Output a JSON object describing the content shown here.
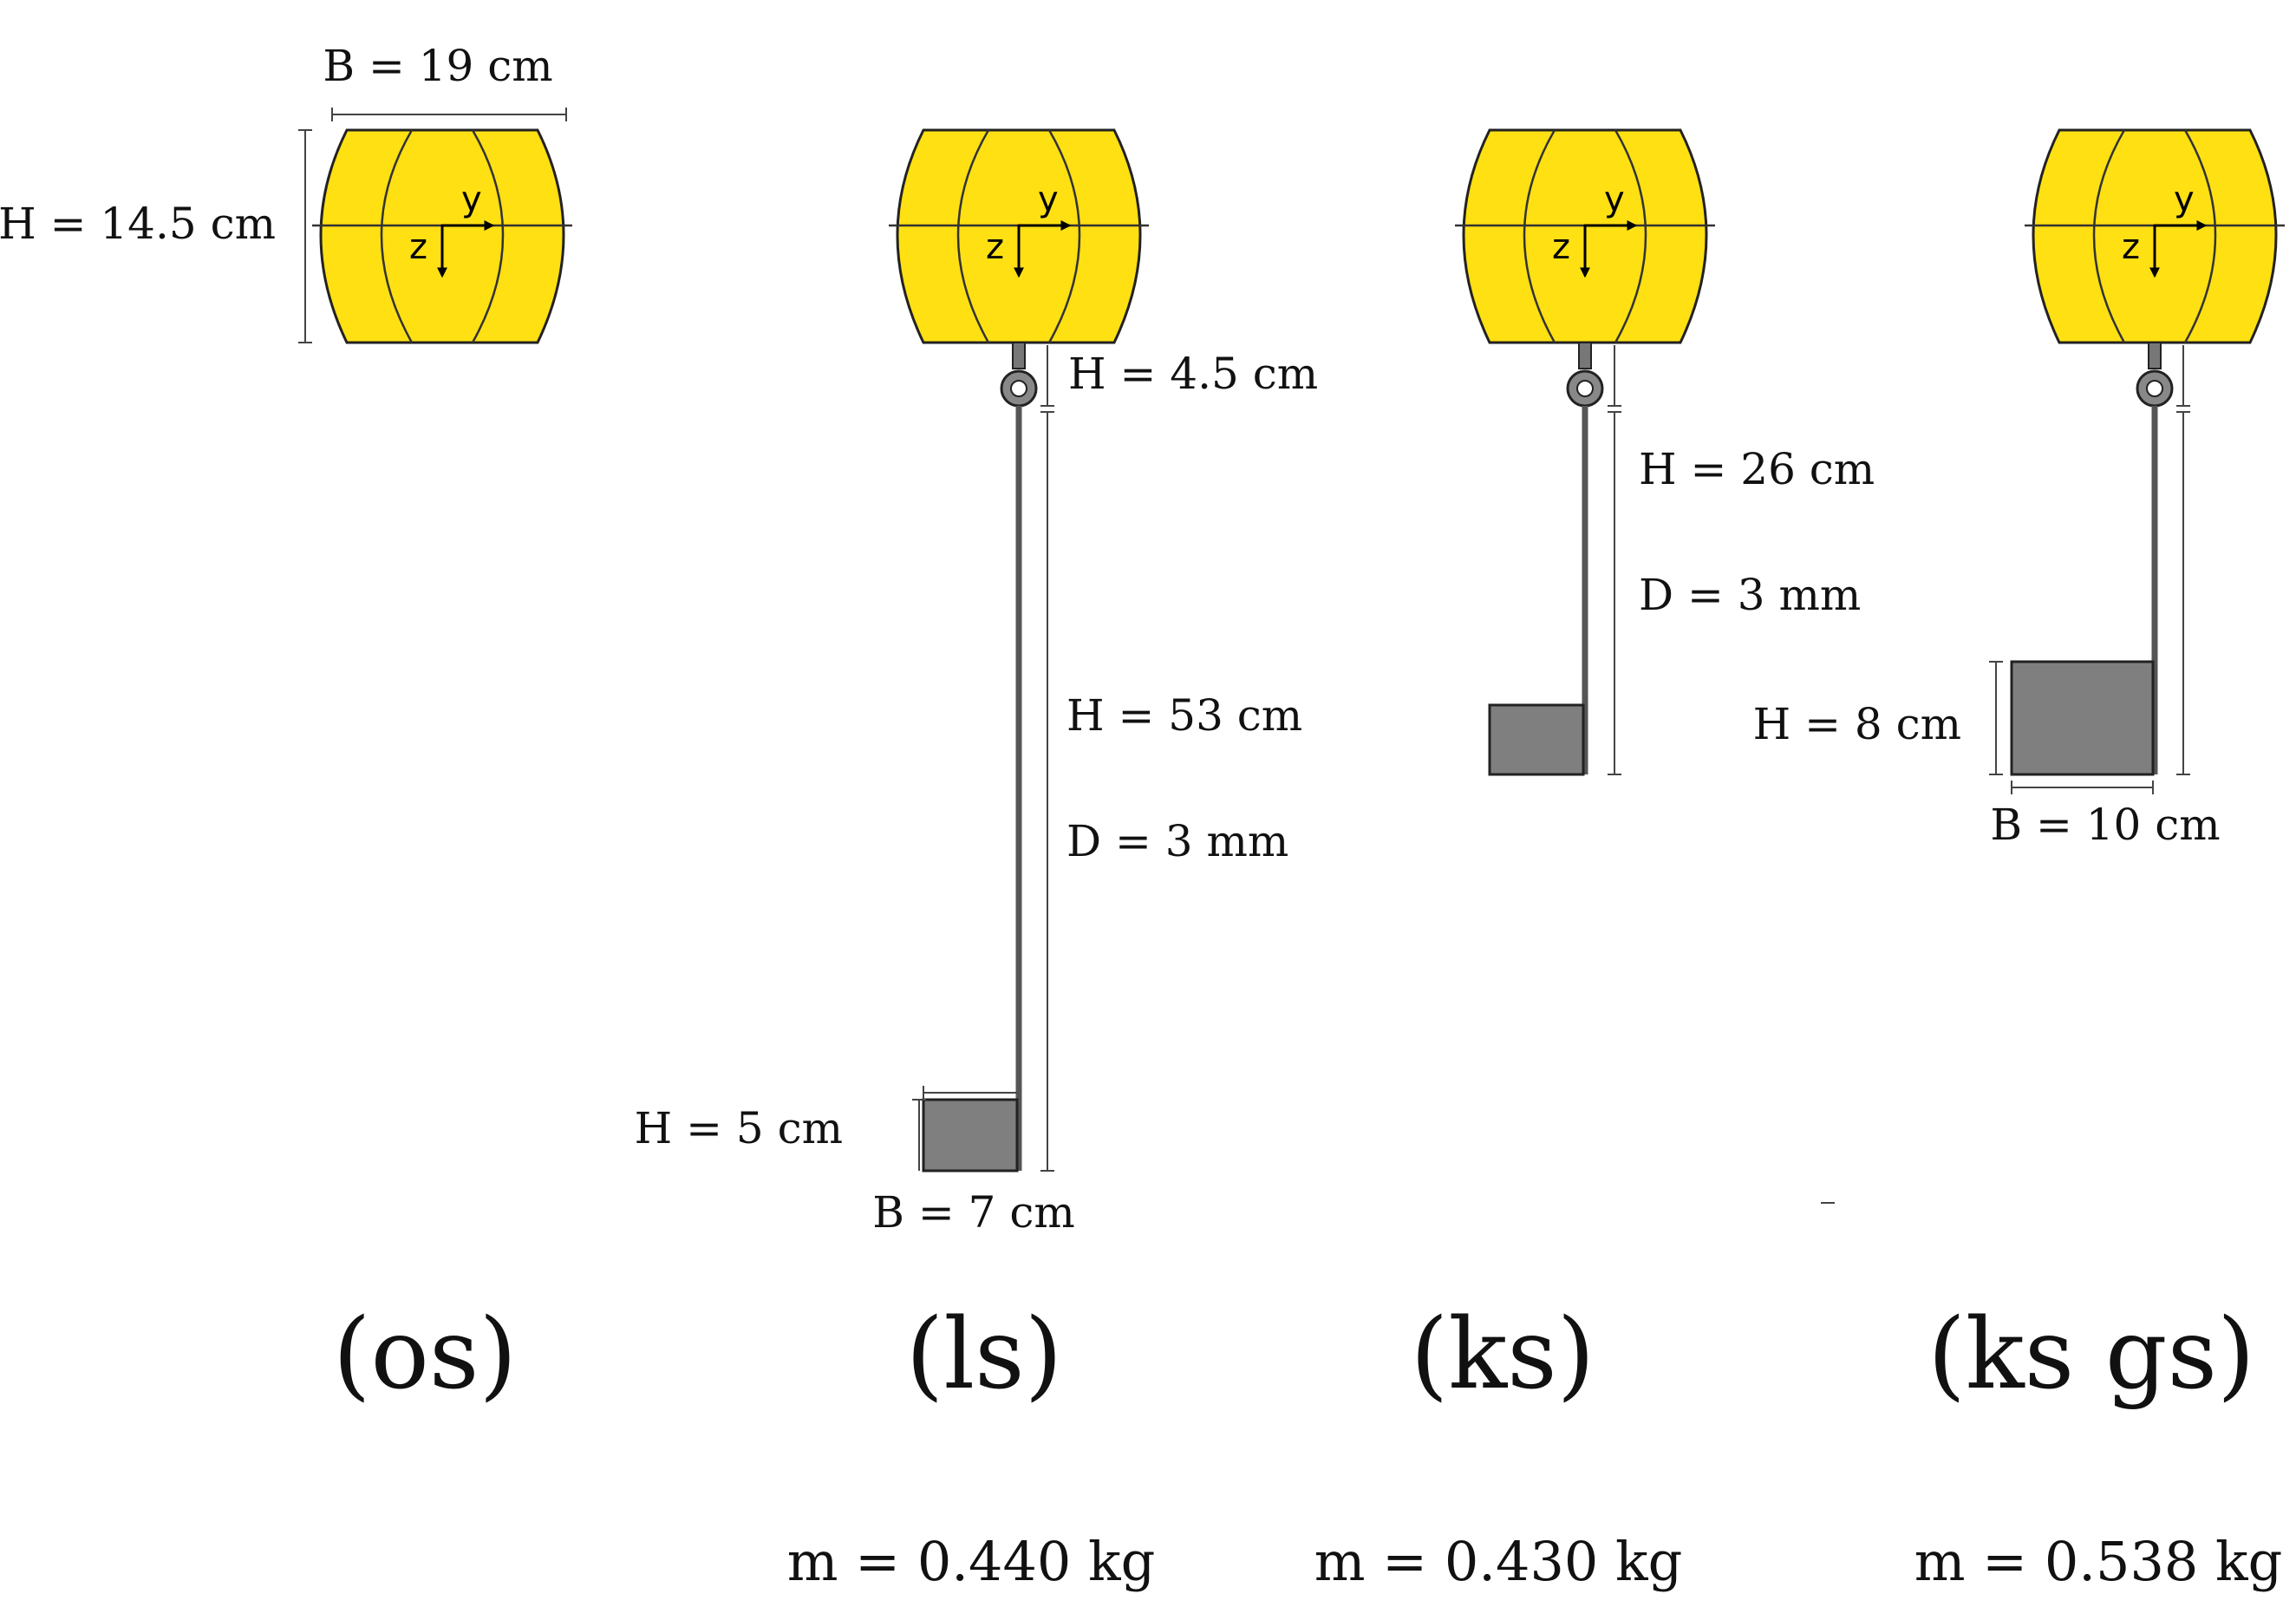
{
  "colors": {
    "buoy": "#FFE013",
    "weight": "#7F7F7F",
    "rod": "#555555",
    "line": "#111111"
  },
  "axes_labels": {
    "y": "y",
    "z": "z"
  },
  "configs": [
    {
      "caption": "(os)",
      "mass": "",
      "dims": {
        "buoy_width": "B = 19 cm",
        "buoy_height": "H = 14.5 cm"
      }
    },
    {
      "caption": "(ls)",
      "mass": "m = 0.440 kg",
      "dims": {
        "connector_height": "H = 4.5 cm",
        "rod_height": "H = 53 cm",
        "rod_diameter": "D = 3 mm",
        "weight_height": "H = 5 cm",
        "weight_width": "B = 7 cm"
      }
    },
    {
      "caption": "(ks)",
      "mass": "m = 0.430 kg",
      "dims": {
        "rod_height": "H = 26 cm",
        "rod_diameter": "D = 3 mm"
      }
    },
    {
      "caption": "(ks gs)",
      "mass": "m = 0.538 kg",
      "dims": {
        "weight_height": "H = 8 cm",
        "weight_width": "B = 10 cm"
      }
    }
  ]
}
